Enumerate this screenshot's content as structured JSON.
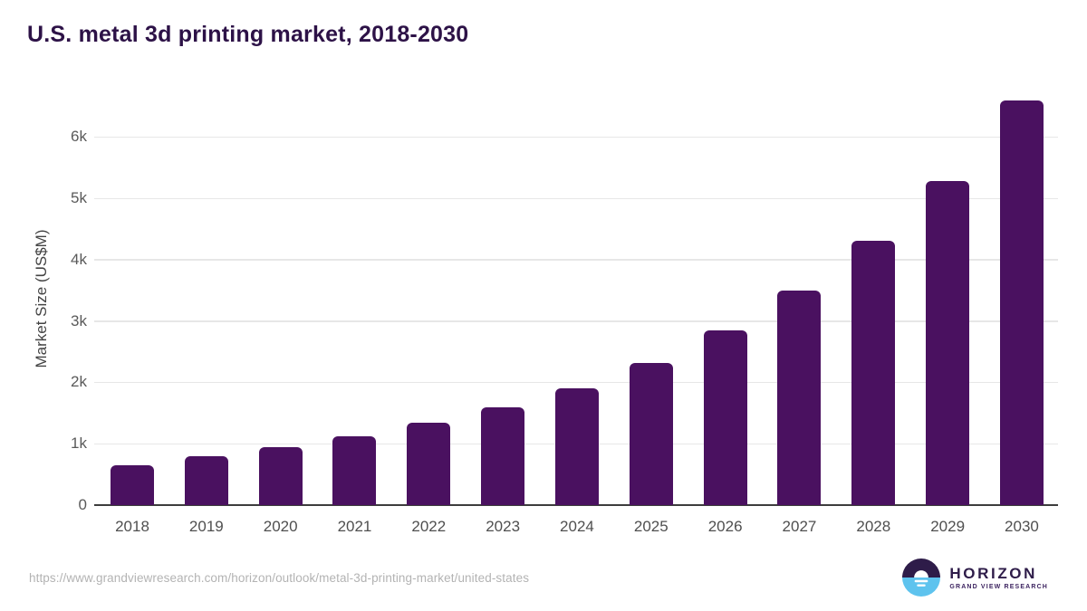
{
  "chart_data": {
    "type": "bar",
    "title": "U.S. metal 3d printing market, 2018-2030",
    "xlabel": "",
    "ylabel": "Market Size (US$M)",
    "categories": [
      "2018",
      "2019",
      "2020",
      "2021",
      "2022",
      "2023",
      "2024",
      "2025",
      "2026",
      "2027",
      "2028",
      "2029",
      "2030"
    ],
    "values": [
      650,
      790,
      940,
      1120,
      1340,
      1590,
      1900,
      2320,
      2840,
      3490,
      4300,
      5280,
      6590
    ],
    "ylim": [
      0,
      6800
    ],
    "ytick_labels": [
      "0",
      "1k",
      "2k",
      "3k",
      "4k",
      "5k",
      "6k"
    ],
    "ytick_values": [
      0,
      1000,
      2000,
      3000,
      4000,
      5000,
      6000
    ],
    "grid": true,
    "legend": false,
    "bar_color": "#4a1160"
  },
  "footer": {
    "source_url": "https://www.grandviewresearch.com/horizon/outlook/metal-3d-printing-market/united-states",
    "logo": {
      "brand": "HORIZON",
      "sub_brand": "GRAND VIEW RESEARCH"
    }
  },
  "colors": {
    "title_text": "#2d1247",
    "bar": "#4a1160",
    "axis_line": "#3d3d3d",
    "gridline": "#e7e7e7",
    "tick_text": "#5a5a5a",
    "source_text": "#b3b3b3",
    "logo_purple": "#2e1c49",
    "logo_blue": "#5ec3ee"
  }
}
